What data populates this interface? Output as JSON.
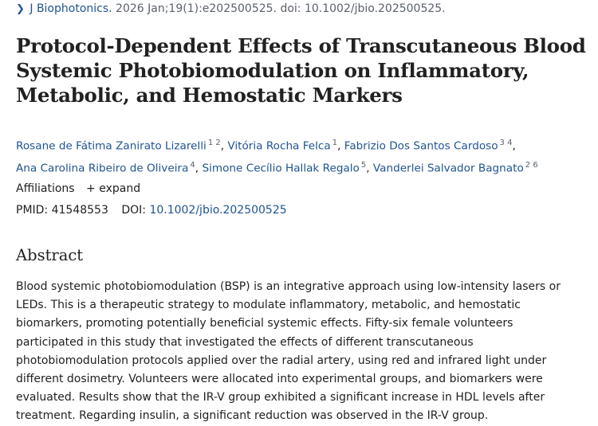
{
  "citation": {
    "journal": "J Biophotonics.",
    "details": " 2026 Jan;19(1):e202500525. doi: 10.1002/jbio.202500525."
  },
  "title": "Protocol-Dependent Effects of Transcutaneous Blood Systemic Photobiomodulation on Inflammatory, Metabolic, and Hemostatic Markers",
  "authors": [
    {
      "name": "Rosane de Fátima Zanirato Lizarelli",
      "sup": "1 2"
    },
    {
      "name": "Vitória Rocha Felca",
      "sup": "1"
    },
    {
      "name": "Fabrizio Dos Santos Cardoso",
      "sup": "3 4"
    },
    {
      "name": "Ana Carolina Ribeiro de Oliveira",
      "sup": "4"
    },
    {
      "name": "Simone Cecílio Hallak Regalo",
      "sup": "5"
    },
    {
      "name": "Vanderlei Salvador Bagnato",
      "sup": "2 6"
    }
  ],
  "affiliations": {
    "label": "Affiliations",
    "toggle_icon": "+",
    "toggle_label": "expand"
  },
  "ids": {
    "pmid_label": "PMID:",
    "pmid": "41548553",
    "doi_label": "DOI:",
    "doi": "10.1002/jbio.202500525"
  },
  "abstract": {
    "heading": "Abstract",
    "text": "Blood systemic photobiomodulation (BSP) is an integrative approach using low-intensity lasers or LEDs. This is a therapeutic strategy to modulate inflammatory, metabolic, and hemostatic biomarkers, promoting potentially beneficial systemic effects. Fifty-six female volunteers participated in this study that investigated the effects of different transcutaneous photobiomodulation protocols applied over the radial artery, using red and infrared light under different dosimetry. Volunteers were allocated into experimental groups, and biomarkers were evaluated. Results show that the IR-V group exhibited a significant increase in HDL levels after treatment. Regarding insulin, a significant reduction was observed in the IR-V group."
  }
}
